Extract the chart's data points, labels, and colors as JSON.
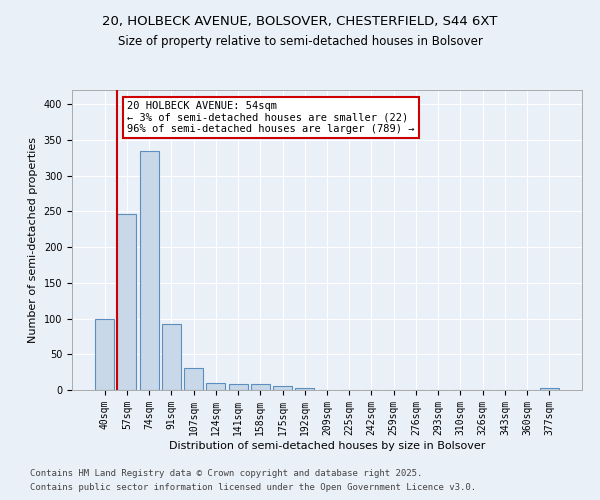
{
  "title_line1": "20, HOLBECK AVENUE, BOLSOVER, CHESTERFIELD, S44 6XT",
  "title_line2": "Size of property relative to semi-detached houses in Bolsover",
  "xlabel": "Distribution of semi-detached houses by size in Bolsover",
  "ylabel": "Number of semi-detached properties",
  "categories": [
    "40sqm",
    "57sqm",
    "74sqm",
    "91sqm",
    "107sqm",
    "124sqm",
    "141sqm",
    "158sqm",
    "175sqm",
    "192sqm",
    "209sqm",
    "225sqm",
    "242sqm",
    "259sqm",
    "276sqm",
    "293sqm",
    "310sqm",
    "326sqm",
    "343sqm",
    "360sqm",
    "377sqm"
  ],
  "values": [
    100,
    247,
    335,
    92,
    31,
    10,
    9,
    8,
    5,
    3,
    0,
    0,
    0,
    0,
    0,
    0,
    0,
    0,
    0,
    0,
    3
  ],
  "bar_color": "#c8d8e8",
  "bar_edge_color": "#5a8fc0",
  "vline_x_index": 1,
  "vline_color": "#cc0000",
  "annotation_text": "20 HOLBECK AVENUE: 54sqm\n← 3% of semi-detached houses are smaller (22)\n96% of semi-detached houses are larger (789) →",
  "annotation_box_color": "#ffffff",
  "annotation_border_color": "#cc0000",
  "ylim": [
    0,
    420
  ],
  "yticks": [
    0,
    50,
    100,
    150,
    200,
    250,
    300,
    350,
    400
  ],
  "background_color": "#eaf0f8",
  "grid_color": "#ffffff",
  "footer_line1": "Contains HM Land Registry data © Crown copyright and database right 2025.",
  "footer_line2": "Contains public sector information licensed under the Open Government Licence v3.0.",
  "title_fontsize": 9.5,
  "subtitle_fontsize": 8.5,
  "axis_label_fontsize": 8,
  "tick_fontsize": 7,
  "footer_fontsize": 6.5,
  "annotation_fontsize": 7.5
}
